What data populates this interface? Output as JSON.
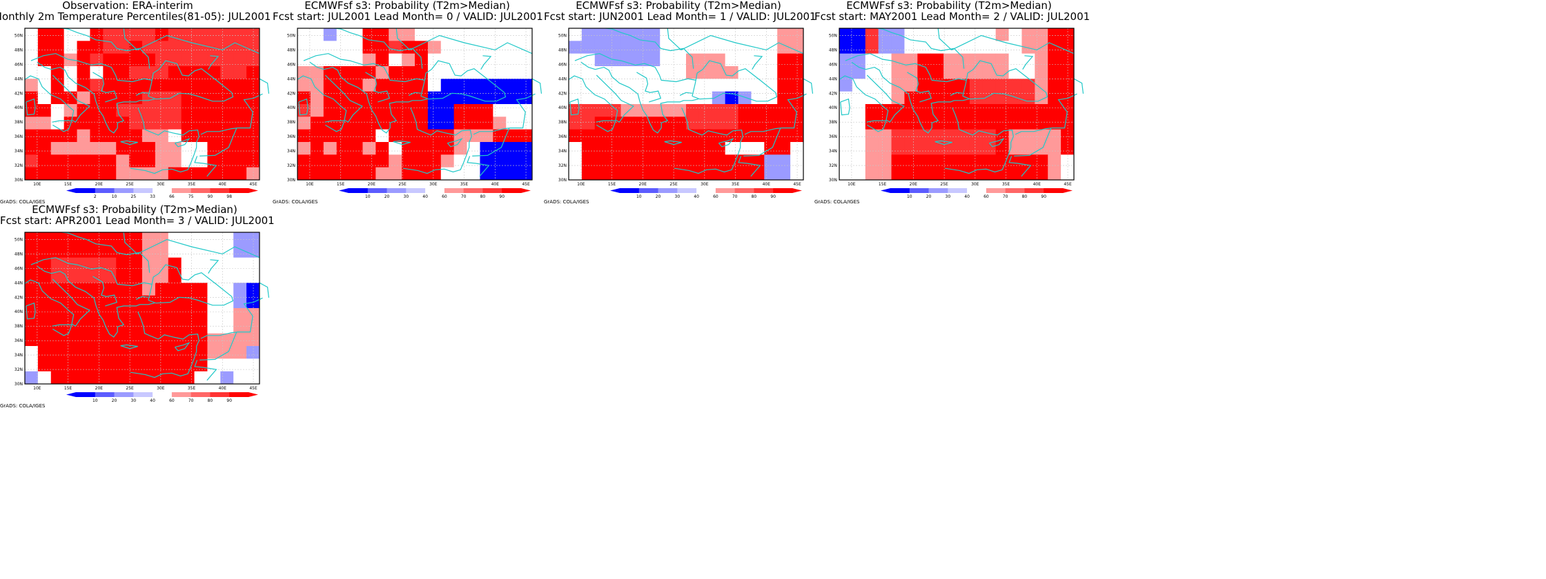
{
  "colors": {
    "red": [
      "#ff0000",
      "#ff3333",
      "#ff6666",
      "#ff9999"
    ],
    "blue": [
      "#0000ff",
      "#5c5cff",
      "#9b9bff"
    ],
    "white": "#ffffff",
    "coast": "#20c8c8",
    "grid": "#c8c8c8"
  },
  "axes": {
    "lat_labels": [
      "30N",
      "32N",
      "34N",
      "36N",
      "38N",
      "40N",
      "42N",
      "44N",
      "46N",
      "48N",
      "50N"
    ],
    "lon_labels": [
      "10E",
      "15E",
      "20E",
      "25E",
      "30E",
      "35E",
      "40E",
      "45E"
    ]
  },
  "footer": "GrADS: COLA/IGES",
  "legend_obs": [
    "2",
    "10",
    "25",
    "33",
    "66",
    "75",
    "90",
    "98"
  ],
  "legend_prob": [
    "10",
    "20",
    "30",
    "40",
    "60",
    "70",
    "80",
    "90"
  ],
  "panels": [
    {
      "title1": "Observation: ERA-interim",
      "title2": "Monthly 2m Temperature Percentiles(81-05): JUL2001",
      "legend": "obs",
      "grid": [
        "WRRWWRMMMMRMMMMMMM",
        "WRRWRRMMRMMMMMMMMM",
        "WRRLRMRRRRMMMMMMMM",
        "WWRWRWRRMMMRRRRMMR",
        "LWRWRMRRRRRRRRRRRR",
        "RWRRLRRRRMMMRRRRRR",
        "RRWLRRRMMMMMRRRRRR",
        "LLWRRRRRMMMMRRRRRR",
        "RRRRLRRRRLLWRRRRRR",
        "RRLLLLLRRRLLWWRRRR",
        "MRRRRRRLRRLLWWRRRR",
        "RRRRRRRLLLLRRRRRRL"
      ]
    },
    {
      "title1": "ECMWFsf s3: Probability (T2m>Median)",
      "title2": "Fcst start: JUL2001   Lead Month= 0 / VALID: JUL2001",
      "legend": "prob",
      "grid": [
        "WWCWWRRLLWWWWWWWWW",
        "WWWWWRRMRRLWWWWWWW",
        "WWWWWLRWLRWWWWWWWW",
        "LLRRRRLRRRWWWWWWWW",
        "LLRRRLRRRRWBBBBBBB",
        "RLRRRRRRRRBBBBBBBB",
        "MLRRRRRRRRBBRRRWWW",
        "LRRRRRRRRRBBRRRLWW",
        "RRRRRRWRRRRRLLLRRR",
        "LRLRRLRWRRRRLWBBBB",
        "RRRRRRRLRRRLWWBBBB",
        "RRRRRRLLRRRWWWBBBB"
      ]
    },
    {
      "title1": "ECMWFsf s3: Probability (T2m>Median)",
      "title2": "Fcst start: JUN2001   Lead Month= 1 / VALID: JUL2001",
      "legend": "prob",
      "grid": [
        "WCCCCCCWWWWWWWWWLL",
        "CCCCCCCWWWWWWWWWLL",
        "WWCCCCCWWLLLWWWWRR",
        "WWWWWWWWWLLLLWWWRR",
        "WWWWWWWWWWWWWWWWRR",
        "WWWWWWWWWWWCBCWWRR",
        "MMMMLLLLLMMMMRRRRR",
        "MMRRRRRRRMMMMRRRRR",
        "RRRRRRRRRRRRRRRRRR",
        "WRRRRRRRRRRRWWWRRW",
        "WRRRRRRRRRRRRRRCCW",
        "WRRRRRRRRRRRRRRCCW"
      ]
    },
    {
      "title1": "ECMWFsf s3: Probability (T2m>Median)",
      "title2": "Fcst start: MAY2001   Lead Month= 2 / VALID: JUL2001",
      "legend": "prob",
      "grid": [
        "BBMCCWWWWWWWLWLLRR",
        "BBMCCWWWWWWWWWLLRR",
        "CCWWLLRRLLLLLWWLRR",
        "CCWWLLRRLLLLLWWLRR",
        "CWWWLLRRRRMMMMMLRR",
        "WWWWLRRRRRMMMMMLRR",
        "WWRRRRRRRRRRRRRRRR",
        "WWRRRRRRRRRRRRRRRR",
        "WWLLMMMMMMMMRLLLLR",
        "WWLLMMMMMMMMRLLLLR",
        "WWLLRRRRRRRRRRRRLW",
        "WWLLRRRRRRRRRRRRLW"
      ]
    },
    {
      "title1": "ECMWFsf s3: Probability (T2m>Median)",
      "title2": "Fcst start: APR2001   Lead Month= 3 / VALID: JUL2001",
      "legend": "prob",
      "grid": [
        "RRRRRRRRRLLWWWWWCC",
        "RRRRRRRRRLLWWWWWCC",
        "RRMMMMMRRLLRWWWWWW",
        "RRMMMMMRRLLRWWWWWW",
        "RRRRRRRRRLRRRRWWCB",
        "RRRRRRRRRRRRRRWWCB",
        "RRRRRRRRRRRRRRWWLL",
        "RRRRRRRRRRRRRRWWLL",
        "RRRRRRRRRRRRRRLLLL",
        "WRRRRRRRRRRRRRLLLC",
        "WRRRRRRRRRRRRRWWWW",
        "CWRRRRRRRRRRRWWCWW"
      ]
    }
  ]
}
